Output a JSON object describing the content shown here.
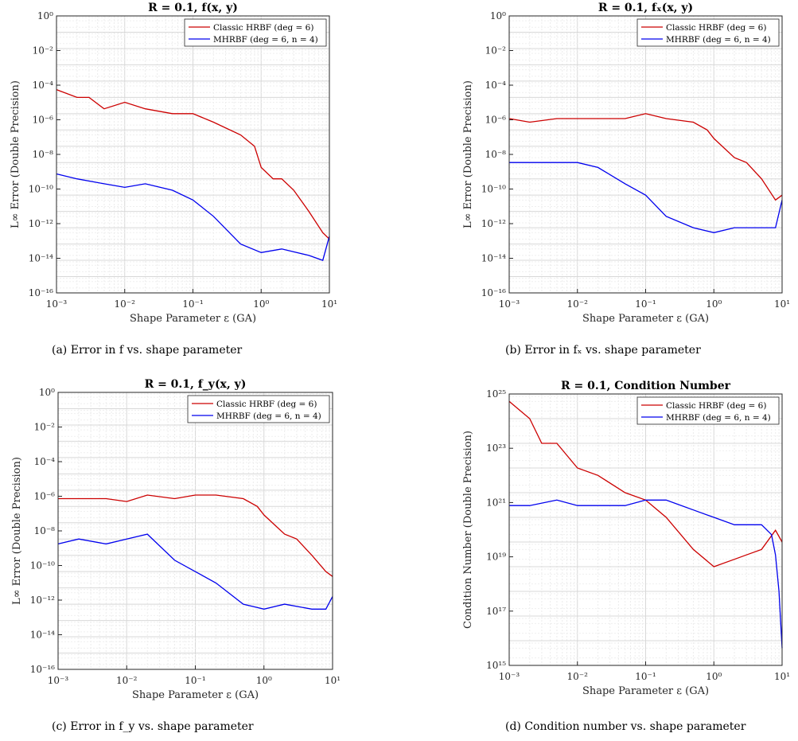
{
  "chart_data": [
    {
      "id": "a",
      "type": "line",
      "title": "R = 0.1, f(x, y)",
      "xlabel": "Shape Parameter ε (GA)",
      "ylabel": "L∞ Error (Double Precision)",
      "xscale": "log",
      "yscale": "log",
      "xlim": [
        0.001,
        10
      ],
      "ylim": [
        1e-16,
        10
      ],
      "xticks": [
        "10⁻³",
        "10⁻²",
        "10⁻¹",
        "10⁰",
        "10¹"
      ],
      "yticks": [
        "10⁻¹⁶",
        "10⁻¹⁴",
        "10⁻¹²",
        "10⁻¹⁰",
        "10⁻⁸",
        "10⁻⁶",
        "10⁻⁴",
        "10⁻²",
        "10⁰"
      ],
      "grid": true,
      "legend": "top-right",
      "caption": "(a) Error in f vs. shape parameter",
      "series": [
        {
          "name": "Classic HRBF (deg = 6)",
          "color": "#cc0000",
          "x": [
            0.001,
            0.002,
            0.003,
            0.005,
            0.01,
            0.02,
            0.05,
            0.1,
            0.2,
            0.5,
            0.8,
            1,
            1.5,
            2,
            3,
            5,
            8,
            10
          ],
          "y": [
            0.0003,
            0.0001,
            0.0001,
            2e-05,
            5e-05,
            2e-05,
            1e-05,
            1e-05,
            3e-06,
            5e-07,
            1e-07,
            5e-09,
            1e-09,
            1e-09,
            2e-10,
            1e-11,
            5e-13,
            2e-13
          ]
        },
        {
          "name": "MHRBF (deg = 6, n = 4)",
          "color": "#0000ee",
          "x": [
            0.001,
            0.002,
            0.005,
            0.01,
            0.02,
            0.05,
            0.1,
            0.2,
            0.5,
            1,
            2,
            5,
            8,
            10
          ],
          "y": [
            2e-09,
            1e-09,
            5e-10,
            3e-10,
            5e-10,
            2e-10,
            5e-11,
            5e-12,
            1e-13,
            3e-14,
            5e-14,
            2e-14,
            1e-14,
            3e-13
          ]
        }
      ]
    },
    {
      "id": "b",
      "type": "line",
      "title": "R = 0.1, fₓ(x, y)",
      "xlabel": "Shape Parameter ε (GA)",
      "ylabel": "L∞ Error (Double Precision)",
      "xscale": "log",
      "yscale": "log",
      "xlim": [
        0.001,
        10
      ],
      "ylim": [
        1e-16,
        10
      ],
      "xticks": [
        "10⁻³",
        "10⁻²",
        "10⁻¹",
        "10⁰",
        "10¹"
      ],
      "yticks": [
        "10⁻¹⁶",
        "10⁻¹⁴",
        "10⁻¹²",
        "10⁻¹⁰",
        "10⁻⁸",
        "10⁻⁶",
        "10⁻⁴",
        "10⁻²",
        "10⁰"
      ],
      "grid": true,
      "legend": "top-right",
      "caption": "(b) Error in fₓ vs. shape parameter",
      "series": [
        {
          "name": "Classic HRBF (deg = 6)",
          "color": "#cc0000",
          "x": [
            0.001,
            0.002,
            0.005,
            0.01,
            0.02,
            0.05,
            0.1,
            0.2,
            0.5,
            0.8,
            1,
            2,
            3,
            5,
            8,
            10
          ],
          "y": [
            5e-06,
            3e-06,
            5e-06,
            5e-06,
            5e-06,
            5e-06,
            1e-05,
            5e-06,
            3e-06,
            1e-06,
            3e-07,
            2e-08,
            1e-08,
            1e-09,
            5e-11,
            1e-10
          ]
        },
        {
          "name": "MHRBF (deg = 6, n = 4)",
          "color": "#0000ee",
          "x": [
            0.001,
            0.002,
            0.005,
            0.01,
            0.02,
            0.05,
            0.1,
            0.2,
            0.5,
            1,
            2,
            5,
            8,
            10
          ],
          "y": [
            1e-08,
            1e-08,
            1e-08,
            1e-08,
            5e-09,
            5e-10,
            1e-10,
            5e-12,
            1e-12,
            5e-13,
            1e-12,
            1e-12,
            1e-12,
            5e-11
          ]
        }
      ]
    },
    {
      "id": "c",
      "type": "line",
      "title": "R = 0.1, f_y(x, y)",
      "xlabel": "Shape Parameter ε (GA)",
      "ylabel": "L∞ Error (Double Precision)",
      "xscale": "log",
      "yscale": "log",
      "xlim": [
        0.001,
        10
      ],
      "ylim": [
        1e-16,
        10
      ],
      "xticks": [
        "10⁻³",
        "10⁻²",
        "10⁻¹",
        "10⁰",
        "10¹"
      ],
      "yticks": [
        "10⁻¹⁶",
        "10⁻¹⁴",
        "10⁻¹²",
        "10⁻¹⁰",
        "10⁻⁸",
        "10⁻⁶",
        "10⁻⁴",
        "10⁻²",
        "10⁰"
      ],
      "grid": true,
      "legend": "top-right",
      "caption": "(c) Error in f_y vs. shape parameter",
      "series": [
        {
          "name": "Classic HRBF (deg = 6)",
          "color": "#cc0000",
          "x": [
            0.001,
            0.002,
            0.005,
            0.01,
            0.02,
            0.05,
            0.1,
            0.2,
            0.5,
            0.8,
            1,
            2,
            3,
            5,
            8,
            10
          ],
          "y": [
            3e-06,
            3e-06,
            3e-06,
            2e-06,
            5e-06,
            3e-06,
            5e-06,
            5e-06,
            3e-06,
            1e-06,
            3e-07,
            2e-08,
            1e-08,
            1e-09,
            1e-10,
            5e-11
          ]
        },
        {
          "name": "MHRBF (deg = 6, n = 4)",
          "color": "#0000ee",
          "x": [
            0.001,
            0.002,
            0.005,
            0.01,
            0.02,
            0.05,
            0.1,
            0.2,
            0.5,
            1,
            2,
            5,
            8,
            10
          ],
          "y": [
            5e-09,
            1e-08,
            5e-09,
            1e-08,
            2e-08,
            5e-10,
            1e-10,
            2e-11,
            1e-12,
            5e-13,
            1e-12,
            5e-13,
            5e-13,
            3e-12
          ]
        }
      ]
    },
    {
      "id": "d",
      "type": "line",
      "title": "R = 0.1, Condition Number",
      "xlabel": "Shape Parameter ε (GA)",
      "ylabel": "Condition Number (Double Precision)",
      "xscale": "log",
      "yscale": "log",
      "xlim": [
        0.001,
        10
      ],
      "ylim": [
        1000000000000000.0,
        1e+26
      ],
      "xticks": [
        "10⁻³",
        "10⁻²",
        "10⁻¹",
        "10⁰",
        "10¹"
      ],
      "yticks": [
        "10¹⁵",
        "10¹⁷",
        "10¹⁹",
        "10²¹",
        "10²³",
        "10²⁵"
      ],
      "grid": true,
      "legend": "top-right",
      "caption": "(d) Condition number vs. shape parameter",
      "series": [
        {
          "name": "Classic HRBF (deg = 6)",
          "color": "#cc0000",
          "x": [
            0.001,
            0.002,
            0.003,
            0.005,
            0.01,
            0.02,
            0.05,
            0.1,
            0.2,
            0.5,
            1,
            2,
            3,
            5,
            8,
            10
          ],
          "y": [
            5e+25,
            1e+25,
            1e+24,
            1e+24,
            1e+23,
            5e+22,
            1e+22,
            5e+21,
            1e+21,
            5e+19,
            1e+19,
            2e+19,
            3e+19,
            5e+19,
            3e+20,
            1e+20
          ]
        },
        {
          "name": "MHRBF (deg = 6, n = 4)",
          "color": "#0000ee",
          "x": [
            0.001,
            0.002,
            0.005,
            0.01,
            0.02,
            0.05,
            0.1,
            0.2,
            0.5,
            1,
            2,
            5,
            7,
            8,
            9,
            10
          ],
          "y": [
            3e+21,
            3e+21,
            5e+21,
            3e+21,
            3e+21,
            3e+21,
            5e+21,
            5e+21,
            2e+21,
            1e+21,
            5e+20,
            5e+20,
            2e+20,
            3e+19,
            1e+18,
            5000000000000000.0
          ]
        }
      ]
    }
  ]
}
